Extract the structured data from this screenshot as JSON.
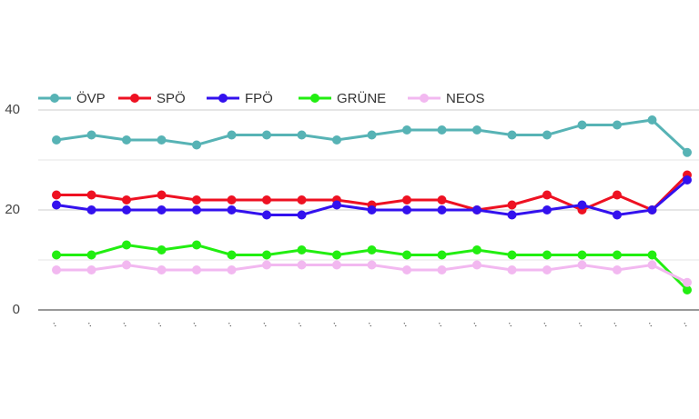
{
  "chart_data": {
    "type": "line",
    "categories": [
      "..",
      "..",
      "..",
      "..",
      "..",
      "..",
      "..",
      "..",
      "..",
      "..",
      "..",
      "..",
      "..",
      "..",
      "..",
      "..",
      "..",
      "..",
      ".."
    ],
    "series": [
      {
        "name": "ÖVP",
        "color": "#57b3b5",
        "values": [
          34,
          35,
          34,
          34,
          33,
          35,
          35,
          35,
          34,
          35,
          36,
          36,
          36,
          35,
          35,
          37,
          37,
          38,
          31.5
        ]
      },
      {
        "name": "SPÖ",
        "color": "#ee1122",
        "values": [
          23,
          23,
          22,
          23,
          22,
          22,
          22,
          22,
          22,
          21,
          22,
          22,
          20,
          21,
          23,
          20,
          23,
          20,
          27
        ]
      },
      {
        "name": "FPÖ",
        "color": "#3311ee",
        "values": [
          21,
          20,
          20,
          20,
          20,
          20,
          19,
          19,
          21,
          20,
          20,
          20,
          20,
          19,
          20,
          21,
          19,
          20,
          26
        ]
      },
      {
        "name": "GRÜNE",
        "color": "#22ee11",
        "values": [
          11,
          11,
          13,
          12,
          13,
          11,
          11,
          12,
          11,
          12,
          11,
          11,
          12,
          11,
          11,
          11,
          11,
          11,
          4
        ]
      },
      {
        "name": "NEOS",
        "color": "#f2b8f0",
        "values": [
          8,
          8,
          9,
          8,
          8,
          8,
          9,
          9,
          9,
          9,
          8,
          8,
          9,
          8,
          8,
          9,
          8,
          9,
          5.5
        ]
      }
    ],
    "ylim": [
      0,
      40
    ],
    "yticks": [
      0,
      20,
      40
    ],
    "minor_gridlines": [
      10,
      30
    ],
    "grid": true,
    "legend": "top-left"
  }
}
